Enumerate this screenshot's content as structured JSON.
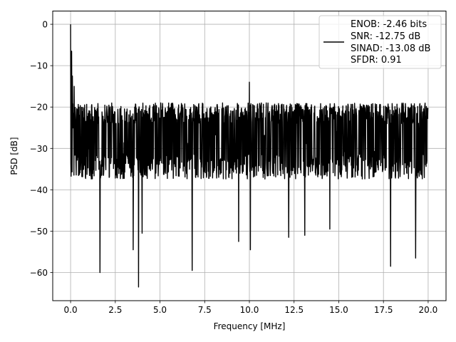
{
  "chart_data": {
    "type": "line",
    "xlabel": "Frequency [MHz]",
    "ylabel": "PSD [dB]",
    "xlim": [
      -1.0,
      21.0
    ],
    "ylim": [
      -66.8,
      3.2
    ],
    "x_range": [
      0,
      20
    ],
    "grid": true,
    "legend_position": "top-right",
    "line_color": "#000000",
    "xticks": [
      {
        "value": 0.0,
        "label": "0.0"
      },
      {
        "value": 2.5,
        "label": "2.5"
      },
      {
        "value": 5.0,
        "label": "5.0"
      },
      {
        "value": 7.5,
        "label": "7.5"
      },
      {
        "value": 10.0,
        "label": "10.0"
      },
      {
        "value": 12.5,
        "label": "12.5"
      },
      {
        "value": 15.0,
        "label": "15.0"
      },
      {
        "value": 17.5,
        "label": "17.5"
      },
      {
        "value": 20.0,
        "label": "20.0"
      }
    ],
    "yticks": [
      {
        "value": 0,
        "label": "0"
      },
      {
        "value": -10,
        "label": "−10"
      },
      {
        "value": -20,
        "label": "−20"
      },
      {
        "value": -30,
        "label": "−30"
      },
      {
        "value": -40,
        "label": "−40"
      },
      {
        "value": -50,
        "label": "−50"
      },
      {
        "value": -60,
        "label": "−60"
      }
    ],
    "legend_lines": [
      "ENOB: -2.46 bits",
      "SNR: -12.75 dB",
      "SINAD: -13.08 dB",
      "SFDR: 0.91"
    ],
    "noise_floor_db": -28,
    "noise_upper_db": -21,
    "noise_lower_db": -35,
    "peaks": [
      {
        "x": 0.0,
        "y": 0.0
      },
      {
        "x": 0.05,
        "y": -6.5
      },
      {
        "x": 0.1,
        "y": -12.5
      },
      {
        "x": 0.2,
        "y": -15.0
      },
      {
        "x": 10.0,
        "y": -14.0
      }
    ],
    "dips": [
      {
        "x": 1.65,
        "y": -60.0
      },
      {
        "x": 3.5,
        "y": -54.5
      },
      {
        "x": 3.8,
        "y": -63.5
      },
      {
        "x": 4.0,
        "y": -50.5
      },
      {
        "x": 6.8,
        "y": -59.5
      },
      {
        "x": 9.4,
        "y": -52.5
      },
      {
        "x": 10.05,
        "y": -54.5
      },
      {
        "x": 12.2,
        "y": -51.5
      },
      {
        "x": 13.1,
        "y": -51.0
      },
      {
        "x": 14.5,
        "y": -49.5
      },
      {
        "x": 17.9,
        "y": -58.5
      },
      {
        "x": 19.3,
        "y": -56.5
      }
    ]
  }
}
